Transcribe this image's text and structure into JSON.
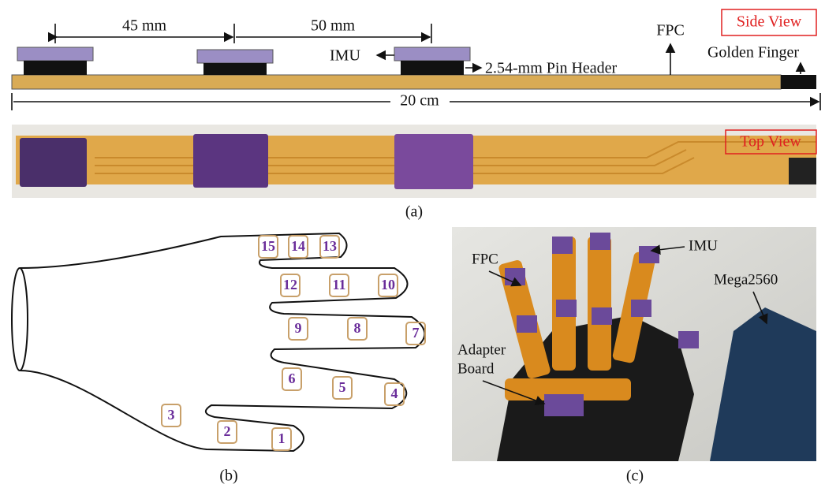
{
  "panel_a": {
    "side_view": {
      "title": "Side View",
      "dimensions": [
        "45 mm",
        "50 mm",
        "20 cm"
      ],
      "labels": {
        "imu": "IMU",
        "pin_header": "2.54-mm Pin Header",
        "fpc": "FPC",
        "golden_finger": "Golden Finger"
      }
    },
    "top_view": {
      "title": "Top View"
    },
    "caption": "(a)"
  },
  "panel_b": {
    "sensor_labels": [
      "1",
      "2",
      "3",
      "4",
      "5",
      "6",
      "7",
      "8",
      "9",
      "10",
      "11",
      "12",
      "13",
      "14",
      "15"
    ],
    "caption": "(b)"
  },
  "panel_c": {
    "labels": {
      "fpc": "FPC",
      "imu": "IMU",
      "mega": "Mega2560",
      "adapter": [
        "Adapter",
        "Board"
      ]
    },
    "caption": "(c)"
  }
}
